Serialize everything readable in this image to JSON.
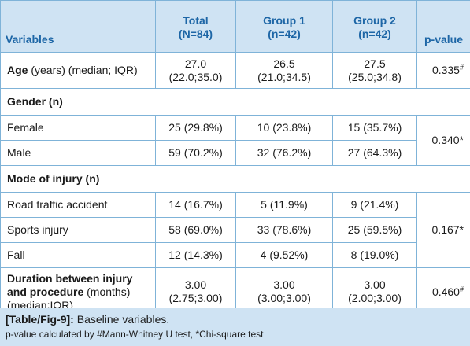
{
  "header": {
    "variables": "Variables",
    "total": "Total",
    "total_n": "(N=84)",
    "group1": "Group 1",
    "group1_n": "(n=42)",
    "group2": "Group 2",
    "group2_n": "(n=42)",
    "pvalue": "p-value"
  },
  "age": {
    "label_bold": "Age",
    "label_rest": " (years) (median; IQR)",
    "total_1": "27.0",
    "total_2": "(22.0;35.0)",
    "g1_1": "26.5",
    "g1_2": "(21.0;34.5)",
    "g2_1": "27.5",
    "g2_2": "(25.0;34.8)",
    "p": "0.335",
    "p_mark": "#"
  },
  "gender": {
    "label": "Gender (n)",
    "female": {
      "label": "Female",
      "total": "25 (29.8%)",
      "g1": "10 (23.8%)",
      "g2": "15 (35.7%)"
    },
    "male": {
      "label": "Male",
      "total": "59 (70.2%)",
      "g1": "32 (76.2%)",
      "g2": "27 (64.3%)"
    },
    "p": "0.340*"
  },
  "injury": {
    "label": "Mode of injury (n)",
    "road": {
      "label": "Road traffic accident",
      "total": "14 (16.7%)",
      "g1": "5 (11.9%)",
      "g2": "9 (21.4%)"
    },
    "sports": {
      "label": "Sports injury",
      "total": "58 (69.0%)",
      "g1": "33 (78.6%)",
      "g2": "25 (59.5%)"
    },
    "fall": {
      "label": "Fall",
      "total": "12 (14.3%)",
      "g1": "4 (9.52%)",
      "g2": "8 (19.0%)"
    },
    "p": "0.167*"
  },
  "duration": {
    "label_bold_1": "Duration between injury",
    "label_bold_2": "and procedure",
    "label_rest": " (months)",
    "label_3": "(median;IQR)",
    "total_1": "3.00",
    "total_2": "(2.75;3.00)",
    "g1_1": "3.00",
    "g1_2": "(3.00;3.00)",
    "g2_1": "3.00",
    "g2_2": "(2.00;3.00)",
    "p": "0.460",
    "p_mark": "#"
  },
  "caption": {
    "tag": "[Table/Fig-9]:",
    "title": " Baseline variables.",
    "note": "p-value calculated by #Mann-Whitney U test, *Chi-square test"
  }
}
